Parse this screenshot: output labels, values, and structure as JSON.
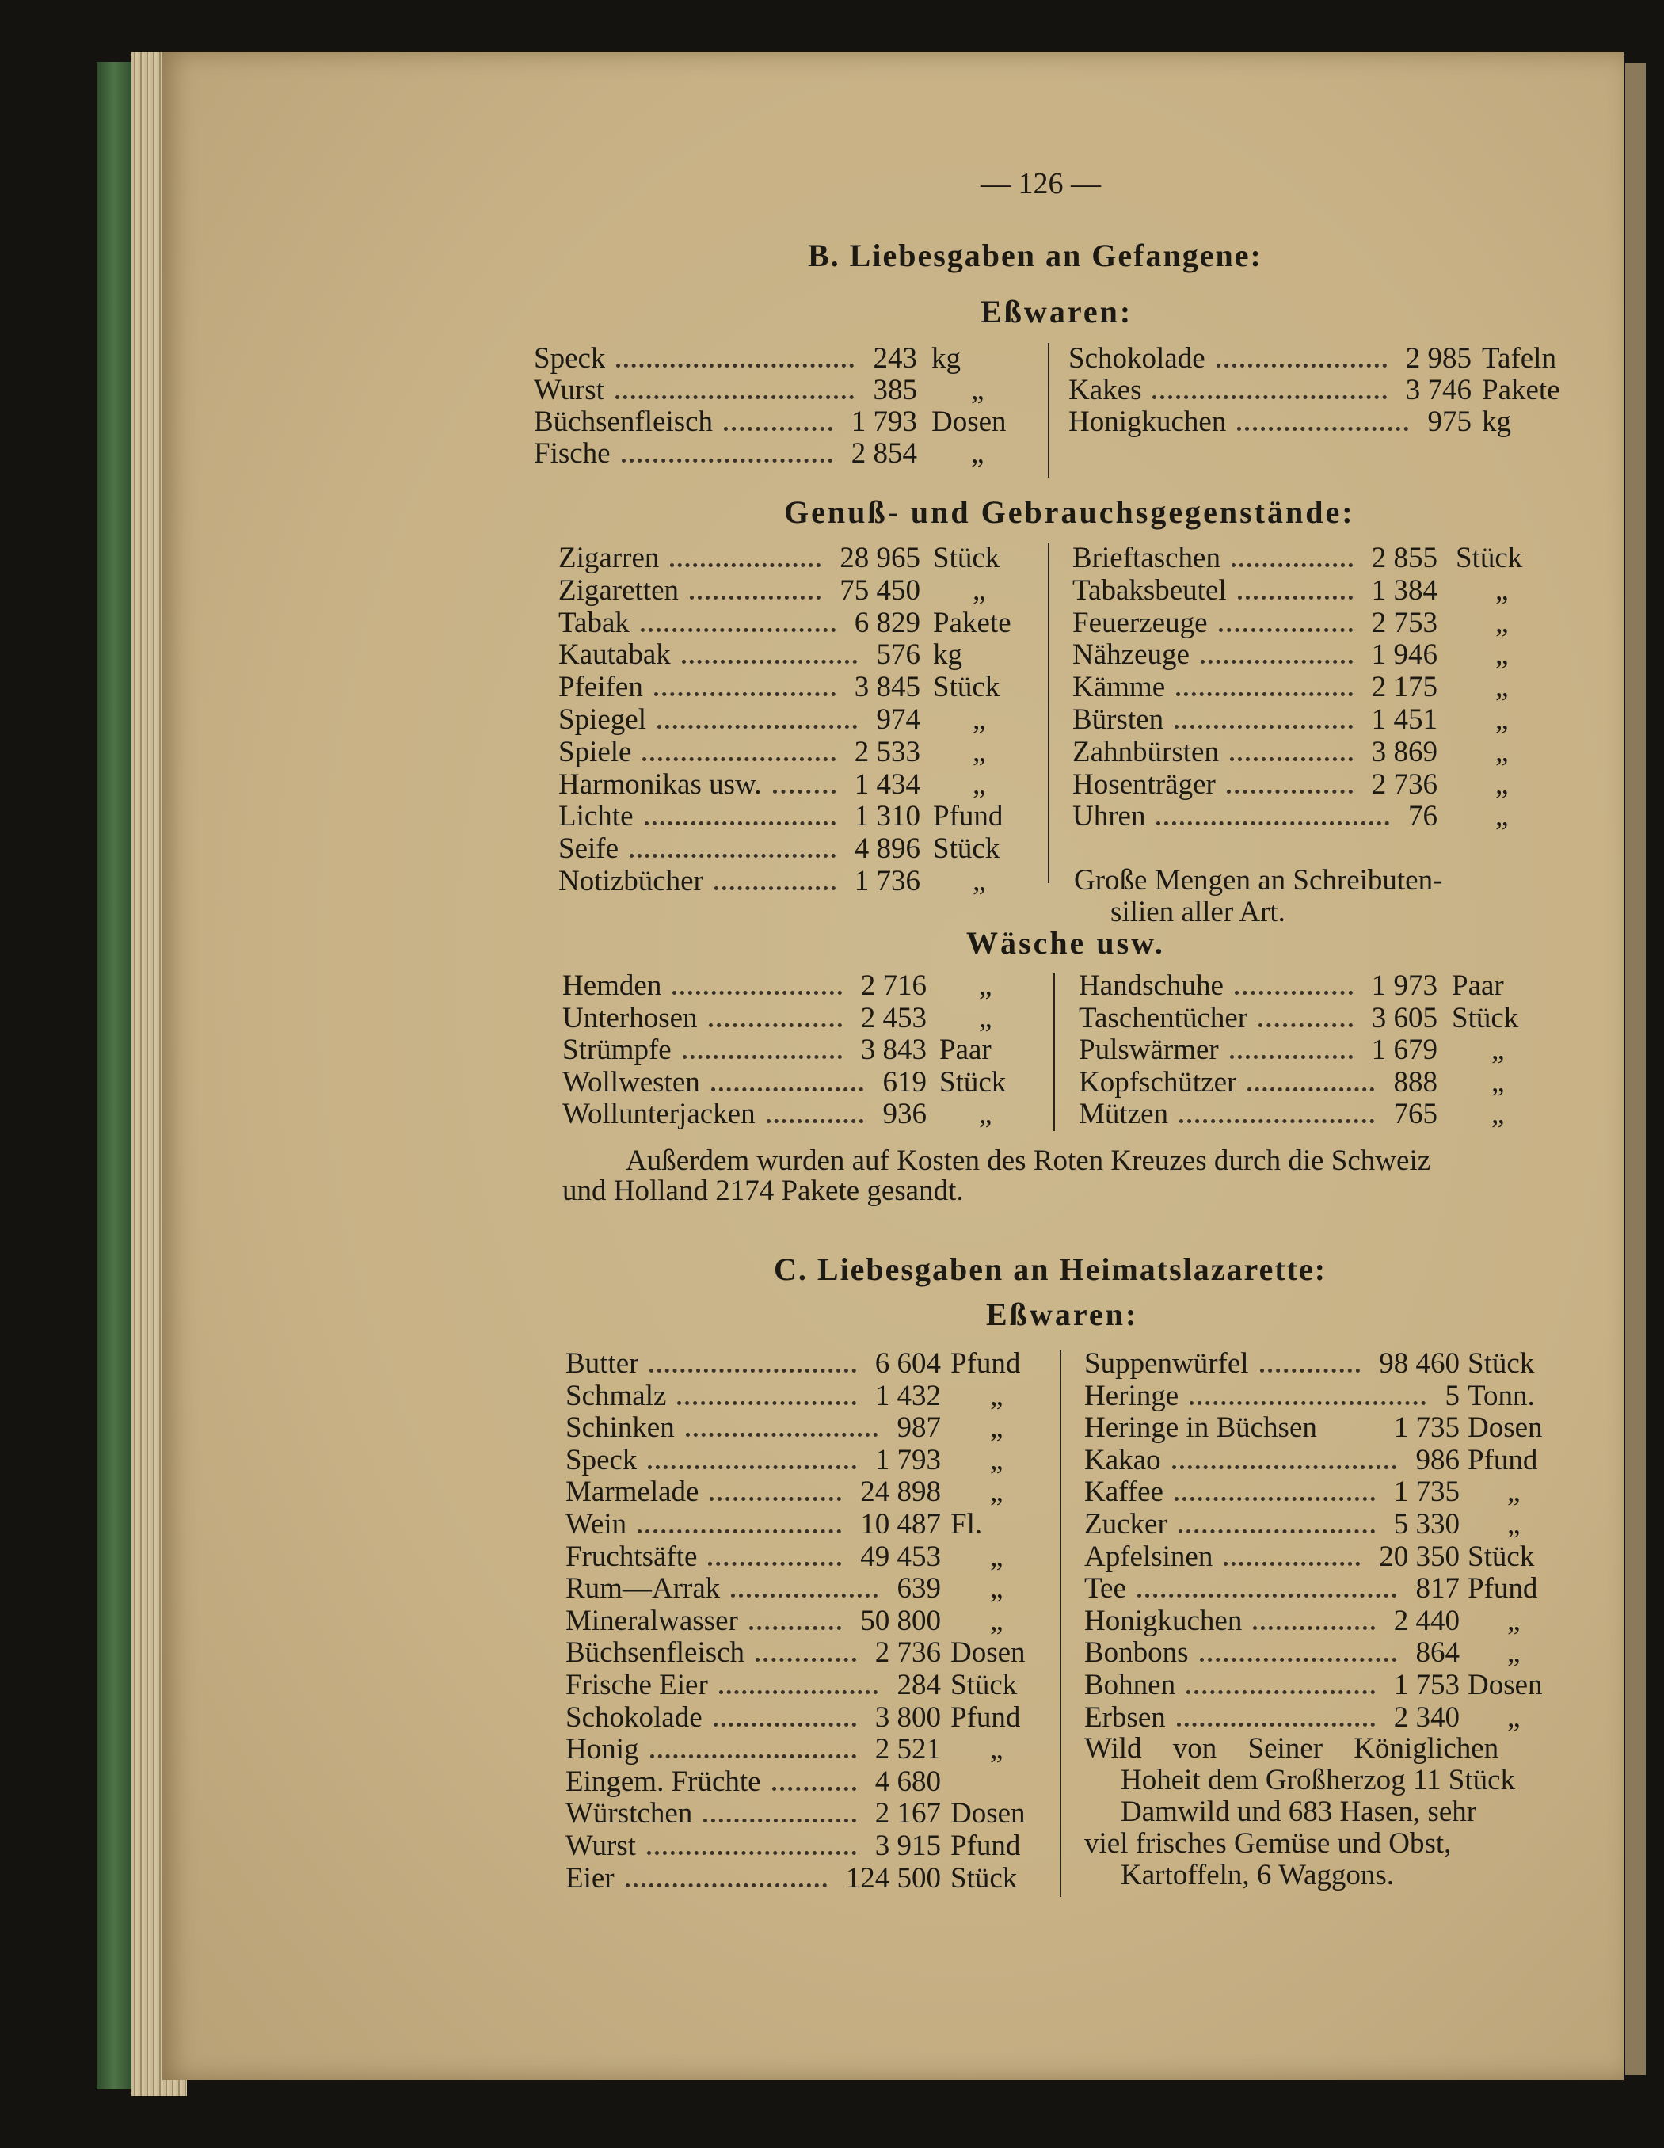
{
  "page_number": "— 126 —",
  "sections": [
    {
      "id": "B",
      "heading": "B. Liebesgaben an Gefangene:",
      "groups": [
        {
          "subheading": "Eßwaren:",
          "left": [
            {
              "name": "Speck",
              "qty": "243",
              "unit": "kg"
            },
            {
              "name": "Wurst",
              "qty": "385",
              "unit": "„"
            },
            {
              "name": "Büchsenfleisch",
              "qty": "1 793",
              "unit": "Dosen"
            },
            {
              "name": "Fische",
              "qty": "2 854",
              "unit": "„"
            }
          ],
          "right": [
            {
              "name": "Schokolade",
              "qty": "2 985",
              "unit": "Tafeln"
            },
            {
              "name": "Kakes",
              "qty": "3 746",
              "unit": "Pakete"
            },
            {
              "name": "Honigkuchen",
              "qty": "975",
              "unit": "kg"
            }
          ]
        },
        {
          "subheading": "Genuß- und Gebrauchsgegenstände:",
          "left": [
            {
              "name": "Zigarren",
              "qty": "28 965",
              "unit": "Stück"
            },
            {
              "name": "Zigaretten",
              "qty": "75 450",
              "unit": "„"
            },
            {
              "name": "Tabak",
              "qty": "6 829",
              "unit": "Pakete"
            },
            {
              "name": "Kautabak",
              "qty": "576",
              "unit": "kg"
            },
            {
              "name": "Pfeifen",
              "qty": "3 845",
              "unit": "Stück"
            },
            {
              "name": "Spiegel",
              "qty": "974",
              "unit": "„"
            },
            {
              "name": "Spiele",
              "qty": "2 533",
              "unit": "„"
            },
            {
              "name": "Harmonikas usw.",
              "qty": "1 434",
              "unit": "„"
            },
            {
              "name": "Lichte",
              "qty": "1 310",
              "unit": "Pfund"
            },
            {
              "name": "Seife",
              "qty": "4 896",
              "unit": "Stück"
            },
            {
              "name": "Notizbücher",
              "qty": "1 736",
              "unit": "„"
            }
          ],
          "right": [
            {
              "name": "Brieftaschen",
              "qty": "2 855",
              "unit": "Stück"
            },
            {
              "name": "Tabaksbeutel",
              "qty": "1 384",
              "unit": "„"
            },
            {
              "name": "Feuerzeuge",
              "qty": "2 753",
              "unit": "„"
            },
            {
              "name": "Nähzeuge",
              "qty": "1 946",
              "unit": "„"
            },
            {
              "name": "Kämme",
              "qty": "2 175",
              "unit": "„"
            },
            {
              "name": "Bürsten",
              "qty": "1 451",
              "unit": "„"
            },
            {
              "name": "Zahnbürsten",
              "qty": "3 869",
              "unit": "„"
            },
            {
              "name": "Hosenträger",
              "qty": "2 736",
              "unit": "„"
            },
            {
              "name": "Uhren",
              "qty": "76",
              "unit": "„"
            }
          ],
          "right_note": [
            "Große Mengen an Schreibuten-",
            "silien aller Art."
          ]
        },
        {
          "subheading": "Wäsche usw.",
          "left": [
            {
              "name": "Hemden",
              "qty": "2 716",
              "unit": "„"
            },
            {
              "name": "Unterhosen",
              "qty": "2 453",
              "unit": "„"
            },
            {
              "name": "Strümpfe",
              "qty": "3 843",
              "unit": "Paar"
            },
            {
              "name": "Wollwesten",
              "qty": "619",
              "unit": "Stück"
            },
            {
              "name": "Wollunterjacken",
              "qty": "936",
              "unit": "„"
            }
          ],
          "right": [
            {
              "name": "Handschuhe",
              "qty": "1 973",
              "unit": "Paar"
            },
            {
              "name": "Taschentücher",
              "qty": "3 605",
              "unit": "Stück"
            },
            {
              "name": "Pulswärmer",
              "qty": "1 679",
              "unit": "„"
            },
            {
              "name": "Kopfschützer",
              "qty": "888",
              "unit": "„"
            },
            {
              "name": "Mützen",
              "qty": "765",
              "unit": "„"
            }
          ]
        }
      ],
      "paragraph": [
        "Außerdem wurden auf Kosten des Roten Kreuzes durch die Schweiz",
        "und Holland 2174 Pakete gesandt."
      ]
    },
    {
      "id": "C",
      "heading": "C. Liebesgaben an Heimatslazarette:",
      "groups": [
        {
          "subheading": "Eßwaren:",
          "left": [
            {
              "name": "Butter",
              "qty": "6 604",
              "unit": "Pfund"
            },
            {
              "name": "Schmalz",
              "qty": "1 432",
              "unit": "„"
            },
            {
              "name": "Schinken",
              "qty": "987",
              "unit": "„"
            },
            {
              "name": "Speck",
              "qty": "1 793",
              "unit": "„"
            },
            {
              "name": "Marmelade",
              "qty": "24 898",
              "unit": "„"
            },
            {
              "name": "Wein",
              "qty": "10 487",
              "unit": "Fl."
            },
            {
              "name": "Fruchtsäfte",
              "qty": "49 453",
              "unit": "„"
            },
            {
              "name": "Rum—Arrak",
              "qty": "639",
              "unit": "„"
            },
            {
              "name": "Mineralwasser",
              "qty": "50 800",
              "unit": "„"
            },
            {
              "name": "Büchsenfleisch",
              "qty": "2 736",
              "unit": "Dosen"
            },
            {
              "name": "Frische Eier",
              "qty": "284",
              "unit": "Stück"
            },
            {
              "name": "Schokolade",
              "qty": "3 800",
              "unit": "Pfund"
            },
            {
              "name": "Honig",
              "qty": "2 521",
              "unit": "„"
            },
            {
              "name": "Eingem. Früchte",
              "qty": "4 680",
              "unit": ""
            },
            {
              "name": "Würstchen",
              "qty": "2 167",
              "unit": "Dosen"
            },
            {
              "name": "Wurst",
              "qty": "3 915",
              "unit": "Pfund"
            },
            {
              "name": "Eier",
              "qty": "124 500",
              "unit": "Stück"
            }
          ],
          "right": [
            {
              "name": "Suppenwürfel",
              "qty": "98 460",
              "unit": "Stück"
            },
            {
              "name": "Heringe",
              "qty": "5",
              "unit": "Tonn."
            },
            {
              "name": "Heringe in Büchsen",
              "qty": "1 735",
              "unit": "Dosen",
              "noleader": true
            },
            {
              "name": "Kakao",
              "qty": "986",
              "unit": "Pfund"
            },
            {
              "name": "Kaffee",
              "qty": "1 735",
              "unit": "„"
            },
            {
              "name": "Zucker",
              "qty": "5 330",
              "unit": "„"
            },
            {
              "name": "Apfelsinen",
              "qty": "20 350",
              "unit": "Stück"
            },
            {
              "name": "Tee",
              "qty": "817",
              "unit": "Pfund"
            },
            {
              "name": "Honigkuchen",
              "qty": "2 440",
              "unit": "„"
            },
            {
              "name": "Bonbons",
              "qty": "864",
              "unit": "„"
            },
            {
              "name": "Bohnen",
              "qty": "1 753",
              "unit": "Dosen"
            },
            {
              "name": "Erbsen",
              "qty": "2 340",
              "unit": "„"
            }
          ],
          "right_note": [
            "Wild von Seiner Königlichen",
            "Hoheit dem Großherzog 11 Stück",
            "Damwild und 683 Hasen, sehr",
            "viel frisches Gemüse und Obst,",
            "Kartoffeln, 6 Waggons."
          ]
        }
      ]
    }
  ]
}
